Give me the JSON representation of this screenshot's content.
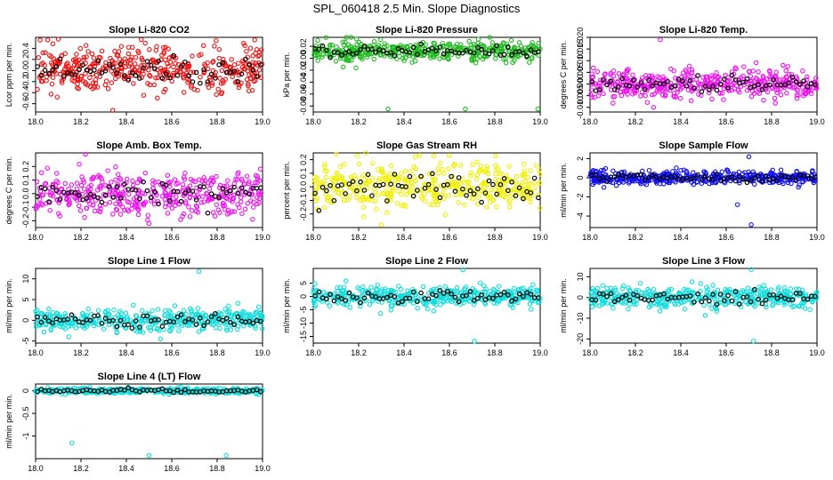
{
  "figure": {
    "title": "SPL_060418  2.5 Min. Slope Diagnostics"
  },
  "colors": {
    "overlay": "#000000"
  },
  "chart_data": [
    {
      "type": "scatter",
      "title": "Slope Li-820 CO2",
      "ylabel": "Lcor ppm per min.",
      "xlim": [
        18.0,
        19.0
      ],
      "ylim": [
        -0.75,
        0.6
      ],
      "xticks": [
        "18.0",
        "18.2",
        "18.4",
        "18.6",
        "18.8",
        "19.0"
      ],
      "yticks": [
        -0.6,
        -0.4,
        -0.2,
        0.0,
        0.2,
        0.4
      ],
      "ytick_labels": [
        "-0.6",
        "-0.4",
        "-0.2",
        "0.0",
        "0.2",
        "0.4"
      ],
      "color": "#ee1111",
      "center": 0.02,
      "spread": 0.2,
      "outliers": [
        [
          18.02,
          0.55
        ],
        [
          18.34,
          -0.72
        ],
        [
          18.74,
          0.45
        ]
      ]
    },
    {
      "type": "scatter",
      "title": "Slope Li-820 Pressure",
      "ylabel": "kPa per min.",
      "xlim": [
        18.0,
        19.0
      ],
      "ylim": [
        -0.09,
        0.035
      ],
      "xticks": [
        "18.0",
        "18.2",
        "18.4",
        "18.6",
        "18.8",
        "19.0"
      ],
      "yticks": [
        -0.08,
        -0.06,
        -0.04,
        -0.02,
        0.0,
        0.02
      ],
      "ytick_labels": [
        "-0.08",
        "-0.06",
        "-0.04",
        "-0.02",
        "0.00",
        "0.02"
      ],
      "color": "#22bb22",
      "center": 0.012,
      "spread": 0.008,
      "outliers": [
        [
          18.02,
          0.03
        ],
        [
          18.33,
          -0.085
        ],
        [
          18.67,
          -0.085
        ],
        [
          18.99,
          -0.085
        ],
        [
          18.1,
          -0.005
        ]
      ]
    },
    {
      "type": "scatter",
      "title": "Slope Li-820 Temp.",
      "ylabel": "degrees C per min.",
      "xlim": [
        18.0,
        19.0
      ],
      "ylim": [
        -0.012,
        0.02
      ],
      "xticks": [
        "18.0",
        "18.2",
        "18.4",
        "18.6",
        "18.8",
        "19.0"
      ],
      "yticks": [
        -0.01,
        -0.005,
        0.0,
        0.005,
        0.01,
        0.015,
        0.02
      ],
      "ytick_labels": [
        "-0.010",
        "-0.005",
        "0.000",
        "0.005",
        "0.010",
        "0.015",
        "0.020"
      ],
      "color": "#ee11ee",
      "center": 0.0,
      "spread": 0.003,
      "outliers": [
        [
          18.31,
          0.019
        ],
        [
          18.85,
          0.008
        ],
        [
          18.28,
          -0.01
        ]
      ]
    },
    {
      "type": "scatter",
      "title": "Slope Amb. Box Temp.",
      "ylabel": "degrees C per min.",
      "xlim": [
        18.0,
        19.0
      ],
      "ylim": [
        -0.25,
        0.3
      ],
      "xticks": [
        "18.0",
        "18.2",
        "18.4",
        "18.6",
        "18.8",
        "19.0"
      ],
      "yticks": [
        -0.2,
        -0.1,
        0.0,
        0.1,
        0.2
      ],
      "ytick_labels": [
        "-0.2",
        "-0.1",
        "0.0",
        "0.1",
        "0.2"
      ],
      "color": "#ee11ee",
      "center": 0.0,
      "spread": 0.08,
      "outliers": [
        [
          18.22,
          0.29
        ],
        [
          18.5,
          -0.22
        ]
      ]
    },
    {
      "type": "scatter",
      "title": "Slope Gas Stream RH",
      "ylabel": "percent per min.",
      "xlim": [
        18.0,
        19.0
      ],
      "ylim": [
        -0.3,
        0.25
      ],
      "xticks": [
        "18.0",
        "18.2",
        "18.4",
        "18.6",
        "18.8",
        "19.0"
      ],
      "yticks": [
        -0.2,
        -0.1,
        0.0,
        0.1,
        0.2
      ],
      "ytick_labels": [
        "-0.2",
        "-0.1",
        "0.0",
        "0.1",
        "0.2"
      ],
      "color": "#f0f000",
      "center": 0.0,
      "spread": 0.08,
      "outliers": [
        [
          18.3,
          -0.28
        ],
        [
          18.45,
          0.22
        ]
      ]
    },
    {
      "type": "scatter",
      "title": "Slope Sample Flow",
      "ylabel": "ml/min per min.",
      "xlim": [
        18.0,
        19.0
      ],
      "ylim": [
        -5.2,
        2.6
      ],
      "xticks": [
        "18.0",
        "18.2",
        "18.4",
        "18.6",
        "18.8",
        "19.0"
      ],
      "yticks": [
        -4,
        -2,
        0,
        2
      ],
      "ytick_labels": [
        "-4",
        "-2",
        "0",
        "2"
      ],
      "color": "#1111ee",
      "center": 0.0,
      "spread": 0.35,
      "outliers": [
        [
          18.71,
          -4.9
        ],
        [
          18.7,
          2.2
        ],
        [
          18.65,
          -2.8
        ]
      ]
    },
    {
      "type": "scatter",
      "title": "Slope Line 1 Flow",
      "ylabel": "ml/min per min.",
      "xlim": [
        18.0,
        19.0
      ],
      "ylim": [
        -5.5,
        12.5
      ],
      "xticks": [
        "18.0",
        "18.2",
        "18.4",
        "18.6",
        "18.8",
        "19.0"
      ],
      "yticks": [
        -5,
        0,
        5,
        10
      ],
      "ytick_labels": [
        "-5",
        "0",
        "5",
        "10"
      ],
      "color": "#11dddd",
      "center": 0.0,
      "spread": 1.3,
      "outliers": [
        [
          18.72,
          11.8
        ],
        [
          18.55,
          -4.5
        ]
      ]
    },
    {
      "type": "scatter",
      "title": "Slope Line 2 Flow",
      "ylabel": "ml/min per min.",
      "xlim": [
        18.0,
        19.0
      ],
      "ylim": [
        -17.5,
        10.5
      ],
      "xticks": [
        "18.0",
        "18.2",
        "18.4",
        "18.6",
        "18.8",
        "19.0"
      ],
      "yticks": [
        -15,
        -10,
        -5,
        0,
        5
      ],
      "ytick_labels": [
        "-15",
        "-10",
        "-5",
        "0",
        "5"
      ],
      "color": "#11dddd",
      "center": 0.0,
      "spread": 1.8,
      "outliers": [
        [
          18.66,
          10.0
        ],
        [
          18.71,
          -16.8
        ]
      ]
    },
    {
      "type": "scatter",
      "title": "Slope Line 3 Flow",
      "ylabel": "ml/min per min.",
      "xlim": [
        18.0,
        19.0
      ],
      "ylim": [
        -22,
        14
      ],
      "xticks": [
        "18.0",
        "18.2",
        "18.4",
        "18.6",
        "18.8",
        "19.0"
      ],
      "yticks": [
        -20,
        -10,
        0,
        10
      ],
      "ytick_labels": [
        "-20",
        "-10",
        "0",
        "10"
      ],
      "color": "#11dddd",
      "center": 0.0,
      "spread": 2.5,
      "outliers": [
        [
          18.71,
          13.5
        ],
        [
          18.72,
          -21
        ]
      ]
    },
    {
      "type": "scatter",
      "title": "Slope Line 4 (LT) Flow",
      "ylabel": "ml/min per min.",
      "xlim": [
        18.0,
        19.0
      ],
      "ylim": [
        -1.5,
        0.15
      ],
      "xticks": [
        "18.0",
        "18.2",
        "18.4",
        "18.6",
        "18.8",
        "19.0"
      ],
      "yticks": [
        -1.0,
        -0.5,
        0.0
      ],
      "ytick_labels": [
        "-1",
        "-0.5",
        "0"
      ],
      "color": "#11dddd",
      "center": 0.0,
      "spread": 0.03,
      "outliers": [
        [
          18.16,
          -1.15
        ],
        [
          18.5,
          -1.43
        ],
        [
          18.84,
          -1.43
        ]
      ]
    }
  ]
}
